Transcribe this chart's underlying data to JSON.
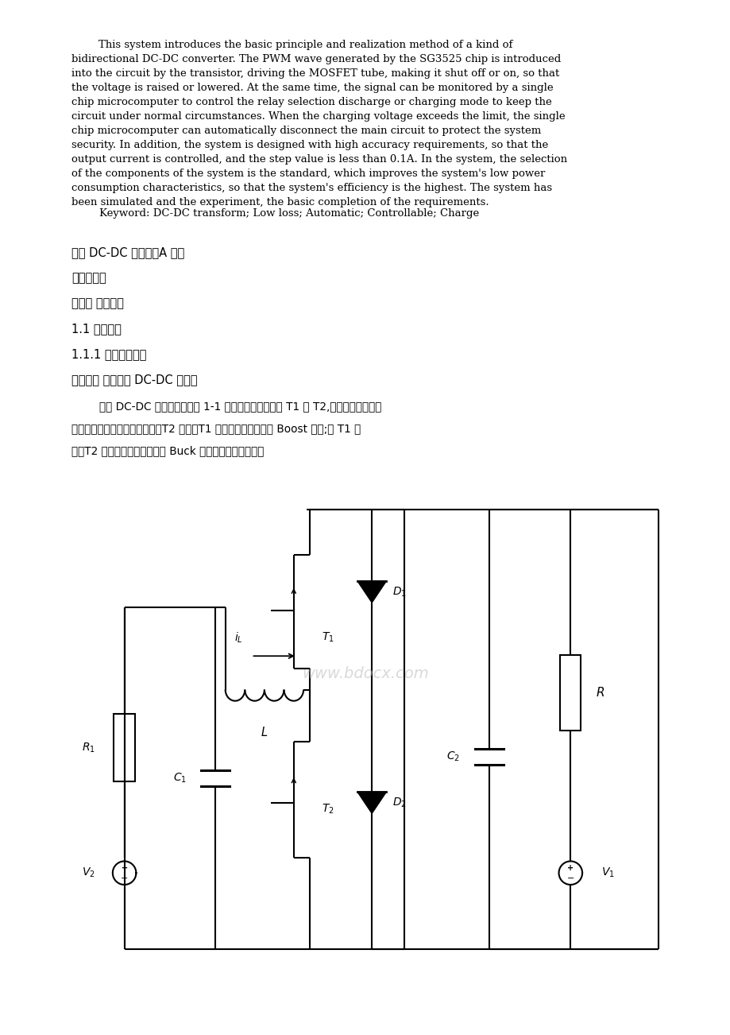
{
  "bg_color": "#ffffff",
  "text_color": "#000000",
  "abstract_text_line1": "        This system introduces the basic principle and realization method of a kind of",
  "abstract_text_line2": "bidirectional DC-DC converter. The PWM wave generated by the SG3525 chip is introduced",
  "abstract_text_line3": "into the circuit by the transistor, driving the MOSFET tube, making it shut off or on, so that",
  "abstract_text_line4": "the voltage is raised or lowered. At the same time, the signal can be monitored by a single",
  "abstract_text_line5": "chip microcomputer to control the relay selection discharge or charging mode to keep the",
  "abstract_text_line6": "circuit under normal circumstances. When the charging voltage exceeds the limit, the single",
  "abstract_text_line7": "chip microcomputer can automatically disconnect the main circuit to protect the system",
  "abstract_text_line8": "security. In addition, the system is designed with high accuracy requirements, so that the",
  "abstract_text_line9": "output current is controlled, and the step value is less than 0.1A. In the system, the selection",
  "abstract_text_line10": "of the components of the system is the standard, which improves the system's low power",
  "abstract_text_line11": "consumption characteristics, so that the system's efficiency is the highest. The system has",
  "abstract_text_line12": "been simulated and the experiment, the basic completion of the requirements.",
  "keyword_line": "Keyword: DC-DC transform; Low loss; Automatic; Controllable; Charge",
  "h1": "双向 DC-DC 变换器（A 题）",
  "h2": "【本科组】",
  "h3": "第一章 方案论证",
  "h4": "1.1 论证比较",
  "h5": "1.1.1 实验方案选择",
  "h6": "方案一： 双向半桥 DC-DC 变换器",
  "circuit_p1": "        双向 DC-DC 变换器电路如图 1-1 所示。通过控制开关 T1 和 T2,达到双向直流升压",
  "circuit_p2": "与降压的目的。在升压运行时，T2 动作，T1 截止，变换器工作在 Boost 状态;当 T1 动",
  "circuit_p3": "作，T2 截止时，变换器工作在 Buck 状态，实现降压功能。",
  "watermark": "www.bdocx.com"
}
